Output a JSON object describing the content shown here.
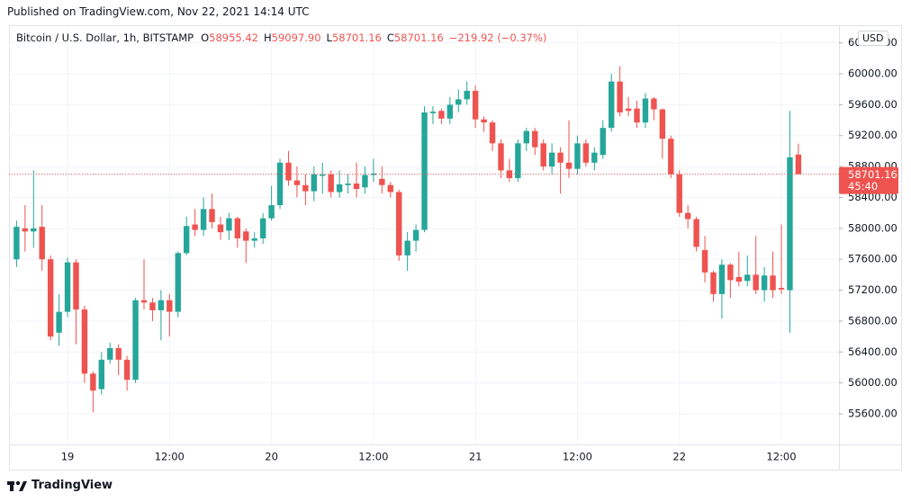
{
  "header": {
    "published": "Published on TradingView.com, Nov 22, 2021 14:14 UTC"
  },
  "footer": {
    "brand": "TradingView"
  },
  "chart_data": {
    "type": "candlestick",
    "legend": {
      "symbol": "Bitcoin / U.S. Dollar, 1h, BITSTAMP",
      "items": [
        {
          "key": "O",
          "value": "58955.42"
        },
        {
          "key": "H",
          "value": "59097.90"
        },
        {
          "key": "L",
          "value": "58701.16"
        },
        {
          "key": "C",
          "value": "58701.16"
        }
      ],
      "change": "−219.92 (−0.37%)"
    },
    "currency": "USD",
    "last_price": 58701.16,
    "countdown": "45:40",
    "up_color": "#26a69a",
    "down_color": "#ef5350",
    "last_line_color": "#ef5350",
    "grid": true,
    "categories": [
      null,
      null,
      null,
      null,
      null,
      null,
      "19",
      null,
      null,
      null,
      null,
      null,
      null,
      null,
      null,
      null,
      null,
      null,
      "12:00",
      null,
      null,
      null,
      null,
      null,
      null,
      null,
      null,
      null,
      null,
      null,
      "20",
      null,
      null,
      null,
      null,
      null,
      null,
      null,
      null,
      null,
      null,
      null,
      "12:00",
      null,
      null,
      null,
      null,
      null,
      null,
      null,
      null,
      null,
      null,
      null,
      "21",
      null,
      null,
      null,
      null,
      null,
      null,
      null,
      null,
      null,
      null,
      null,
      "12:00",
      null,
      null,
      null,
      null,
      null,
      null,
      null,
      null,
      null,
      null,
      null,
      "22",
      null,
      null,
      null,
      null,
      null,
      null,
      null,
      null,
      null,
      null,
      null,
      "12:00",
      null,
      null
    ],
    "open": [
      57600,
      58000,
      57960,
      58020,
      57600,
      56650,
      56920,
      57560,
      56950,
      56120,
      55920,
      56300,
      56450,
      56300,
      56040,
      57070,
      57040,
      56940,
      57070,
      56920,
      57680,
      58050,
      57980,
      58250,
      58050,
      57970,
      58130,
      57960,
      57840,
      57870,
      58130,
      58300,
      58850,
      58620,
      58560,
      58480,
      58680,
      58700,
      58470,
      58560,
      58580,
      58530,
      58690,
      58640,
      58560,
      58470,
      57650,
      57840,
      57980,
      59490,
      59520,
      59420,
      59600,
      59670,
      59780,
      59410,
      59370,
      59100,
      58750,
      58650,
      59100,
      59260,
      59100,
      58800,
      58980,
      58850,
      58770,
      59100,
      58850,
      58950,
      59300,
      59900,
      59550,
      59550,
      59370,
      59680,
      59540,
      59160,
      58700,
      58200,
      58120,
      57720,
      57430,
      57150,
      57530,
      57370,
      57320,
      57400,
      57200,
      57390,
      57230,
      57200,
      58955.42
    ],
    "high": [
      58100,
      58300,
      58750,
      58300,
      57650,
      57150,
      57620,
      57600,
      57000,
      56150,
      56400,
      56520,
      56500,
      56350,
      57100,
      57600,
      57100,
      57200,
      57150,
      57700,
      58150,
      58250,
      58400,
      58450,
      58150,
      58200,
      58150,
      58000,
      57950,
      58200,
      58550,
      58900,
      59000,
      58800,
      58700,
      58800,
      58850,
      58750,
      58750,
      58700,
      58850,
      58800,
      58900,
      58800,
      58600,
      58500,
      57950,
      58050,
      59580,
      59580,
      59550,
      59700,
      59800,
      59900,
      59850,
      59450,
      59400,
      59150,
      58900,
      59150,
      59300,
      59300,
      59150,
      59100,
      59050,
      59400,
      59200,
      59150,
      59050,
      59400,
      60000,
      60100,
      59700,
      59650,
      59750,
      59700,
      59550,
      59200,
      58750,
      58300,
      58150,
      57900,
      57450,
      57600,
      57550,
      57700,
      57650,
      57900,
      57500,
      57700,
      58050,
      59520,
      59097.9
    ],
    "low": [
      57500,
      57700,
      57750,
      57450,
      56550,
      56480,
      56850,
      56500,
      56000,
      55620,
      55850,
      56250,
      56100,
      55900,
      56000,
      56950,
      56800,
      56550,
      56600,
      56850,
      57650,
      57900,
      57900,
      58000,
      57850,
      57850,
      57750,
      57550,
      57750,
      57800,
      58100,
      58250,
      58550,
      58400,
      58300,
      58350,
      58450,
      58400,
      58400,
      58450,
      58400,
      58450,
      58600,
      58450,
      58400,
      57580,
      57450,
      57700,
      57950,
      59350,
      59350,
      59350,
      59500,
      59600,
      59300,
      59250,
      59000,
      58650,
      58600,
      58600,
      59000,
      58950,
      58750,
      58700,
      58450,
      58650,
      58700,
      58800,
      58750,
      58900,
      59250,
      59450,
      59450,
      59300,
      59300,
      59400,
      58900,
      58650,
      58150,
      58000,
      57700,
      57300,
      57050,
      56830,
      57100,
      57250,
      57250,
      57150,
      57050,
      57100,
      57150,
      56650,
      58701.16
    ],
    "close": [
      58020,
      57960,
      58000,
      57600,
      56600,
      56920,
      57560,
      56950,
      56120,
      55900,
      56300,
      56450,
      56300,
      56040,
      57070,
      57040,
      56940,
      57070,
      56920,
      57680,
      58030,
      57980,
      58250,
      58080,
      57950,
      58130,
      57870,
      57840,
      57870,
      58130,
      58300,
      58850,
      58620,
      58560,
      58480,
      58700,
      58700,
      58470,
      58570,
      58580,
      58510,
      58690,
      58710,
      58560,
      58470,
      57650,
      57840,
      57980,
      59500,
      59510,
      59420,
      59600,
      59670,
      59780,
      59410,
      59370,
      59100,
      58750,
      58650,
      59100,
      59260,
      59050,
      58800,
      58980,
      58850,
      58770,
      59100,
      58850,
      58980,
      59300,
      59900,
      59500,
      59520,
      59370,
      59680,
      59540,
      59160,
      58700,
      58200,
      58120,
      57760,
      57430,
      57150,
      57530,
      57330,
      57310,
      57400,
      57200,
      57390,
      57200,
      57210,
      58920,
      58701.16
    ],
    "ylim": [
      55204,
      60629
    ],
    "yticks": [
      {
        "value": 55600,
        "label": "55600.00"
      },
      {
        "value": 56000,
        "label": "56000.00"
      },
      {
        "value": 56400,
        "label": "56400.00"
      },
      {
        "value": 56800,
        "label": "56800.00"
      },
      {
        "value": 57200,
        "label": "57200.00"
      },
      {
        "value": 57600,
        "label": "57600.00"
      },
      {
        "value": 58000,
        "label": "58000.00"
      },
      {
        "value": 58400,
        "label": "58400.00"
      },
      {
        "value": 58800,
        "label": "58800.00"
      },
      {
        "value": 59200,
        "label": "59200.00"
      },
      {
        "value": 59600,
        "label": "59600.00"
      },
      {
        "value": 60000,
        "label": "60000.00"
      },
      {
        "value": 60400,
        "label": "60400.00"
      }
    ]
  }
}
